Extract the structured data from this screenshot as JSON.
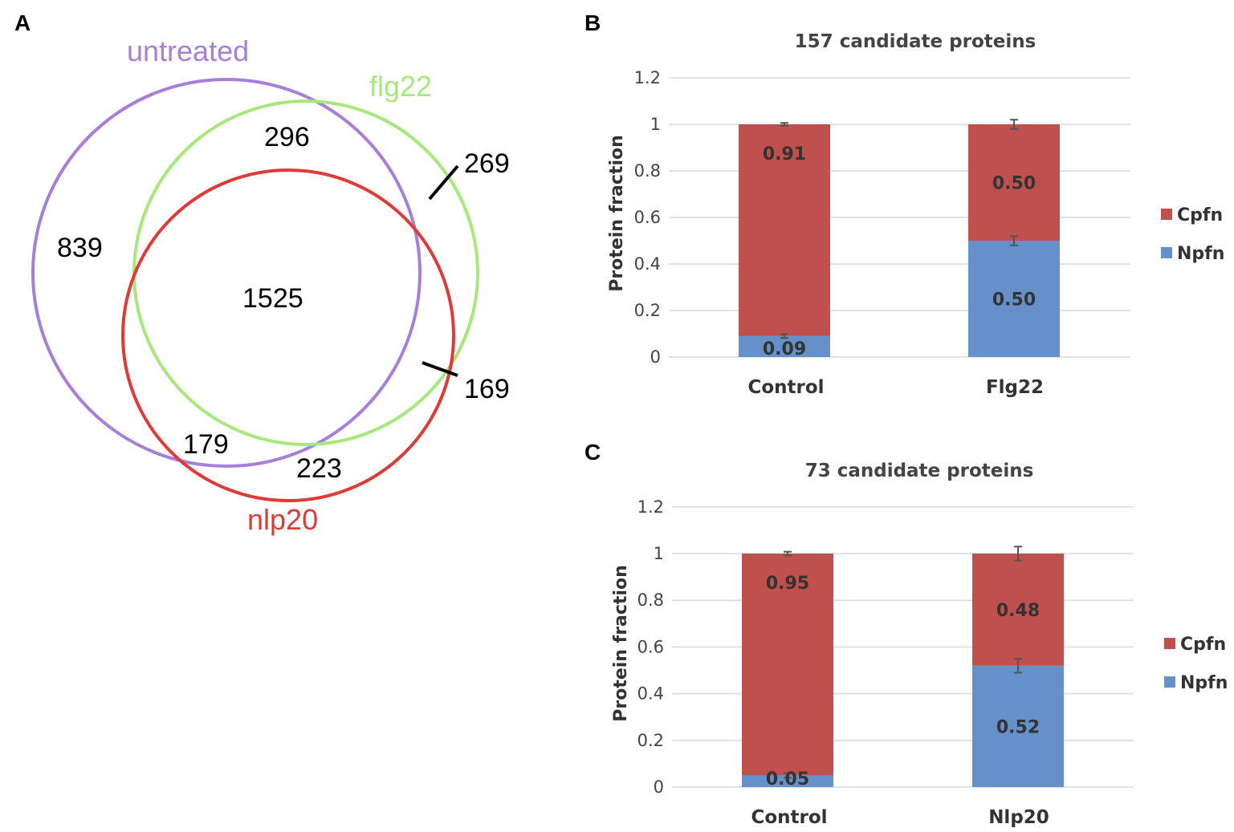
{
  "panels": {
    "a": "A",
    "b": "B",
    "c": "C"
  },
  "venn": {
    "sets": [
      {
        "name": "untreated",
        "color": "#a77ed8"
      },
      {
        "name": "flg22",
        "color": "#a6e87a"
      },
      {
        "name": "nlp20",
        "color": "#e03a36"
      }
    ],
    "regions": {
      "untreated_only": "839",
      "untreated_flg22": "296",
      "all_three": "1525",
      "flg22_only": "269",
      "flg22_nlp20": "169",
      "untreated_nlp20": "179",
      "nlp20_only": "223"
    }
  },
  "colors": {
    "npfn": "#6690c9",
    "cpfn": "#c0504d",
    "grid": "#d9d9d9"
  },
  "chart_data": [
    {
      "type": "bar",
      "stacked": true,
      "title": "157 candidate proteins",
      "ylabel": "Protein fraction",
      "xlabel": "",
      "categories": [
        "Control",
        "Flg22"
      ],
      "series": [
        {
          "name": "Npfn",
          "values": [
            0.09,
            0.5
          ],
          "labels": [
            "0.09",
            "0.50"
          ],
          "errors": [
            0.008,
            0.02
          ]
        },
        {
          "name": "Cpfn",
          "values": [
            0.91,
            0.5
          ],
          "labels": [
            "0.91",
            "0.50"
          ],
          "errors": [
            0.006,
            0.02
          ]
        }
      ],
      "ylim": [
        0,
        1.2
      ],
      "yticks": [
        "0",
        "0.2",
        "0.4",
        "0.6",
        "0.8",
        "1",
        "1.2"
      ],
      "legend": [
        "Cpfn",
        "Npfn"
      ],
      "legend_position": "right"
    },
    {
      "type": "bar",
      "stacked": true,
      "title": "73 candidate proteins",
      "ylabel": "Protein fraction",
      "xlabel": "",
      "categories": [
        "Control",
        "Nlp20"
      ],
      "series": [
        {
          "name": "Npfn",
          "values": [
            0.05,
            0.52
          ],
          "labels": [
            "0.05",
            "0.52"
          ],
          "errors": [
            0.01,
            0.03
          ]
        },
        {
          "name": "Cpfn",
          "values": [
            0.95,
            0.48
          ],
          "labels": [
            "0.95",
            "0.48"
          ],
          "errors": [
            0.008,
            0.03
          ]
        }
      ],
      "ylim": [
        0,
        1.2
      ],
      "yticks": [
        "0",
        "0.2",
        "0.4",
        "0.6",
        "0.8",
        "1",
        "1.2"
      ],
      "legend": [
        "Cpfn",
        "Npfn"
      ],
      "legend_position": "right"
    }
  ]
}
